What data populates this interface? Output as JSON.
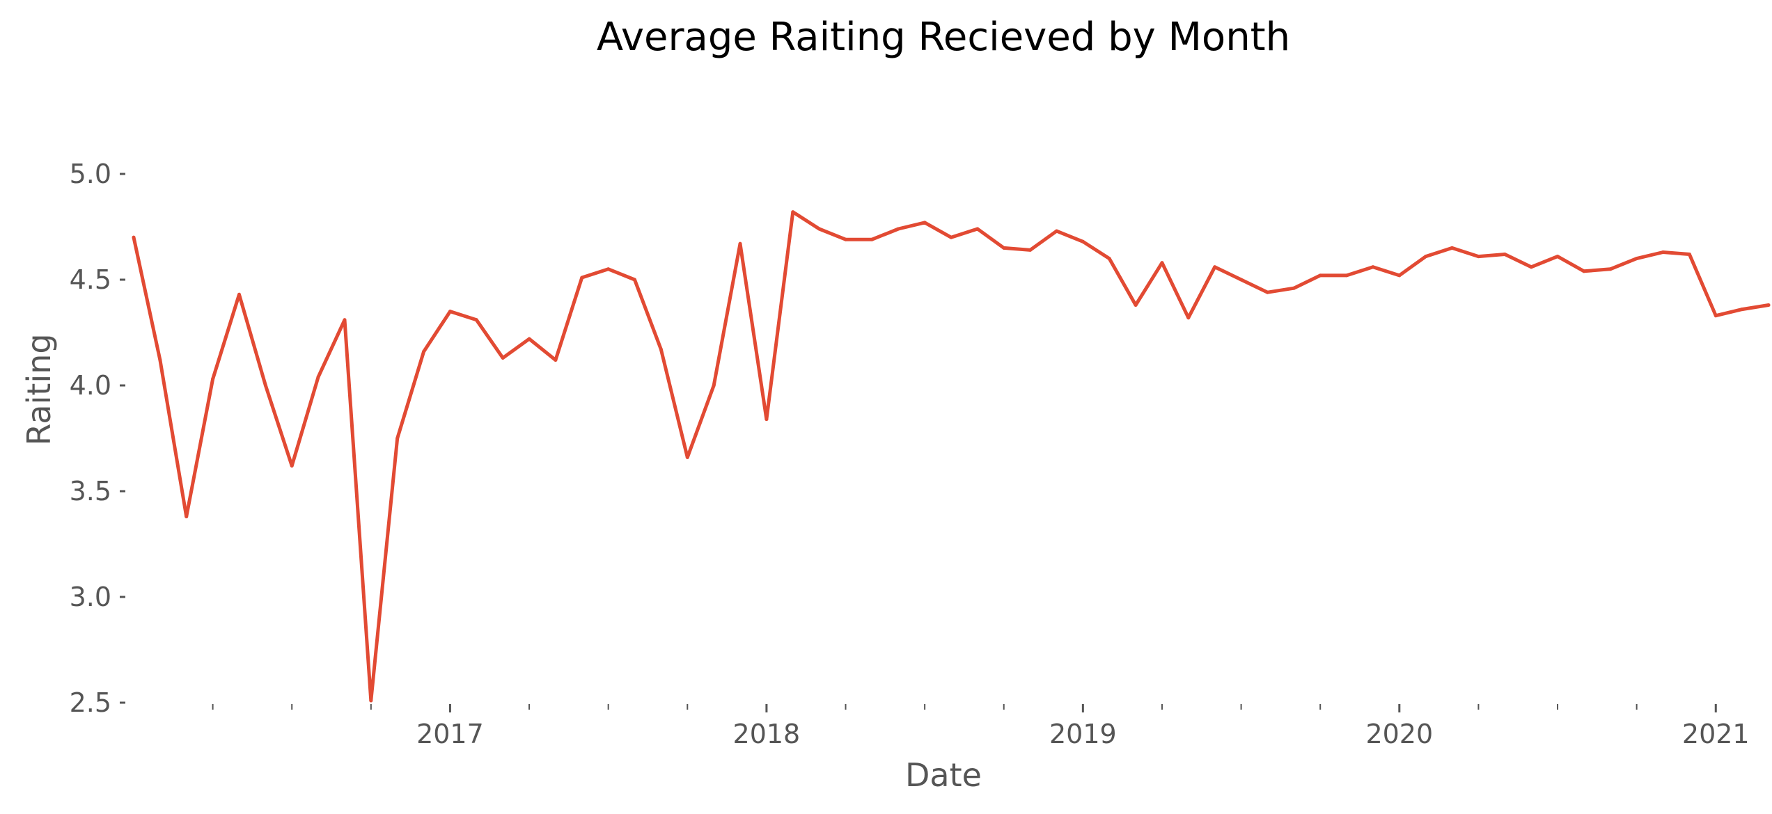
{
  "chart_data": {
    "type": "line",
    "title": "Average Raiting Recieved by Month",
    "xlabel": "Date",
    "ylabel": "Raiting",
    "ylim": [
      2.5,
      5.0
    ],
    "xlim": [
      "2016-01",
      "2021-03"
    ],
    "yticks": [
      "2.5",
      "3.0",
      "3.5",
      "4.0",
      "4.5",
      "5.0"
    ],
    "xticks": [
      "2017",
      "2018",
      "2019",
      "2020",
      "2021"
    ],
    "grid": false,
    "line_color": "#E24A33",
    "x": [
      "2016-01",
      "2016-02",
      "2016-03",
      "2016-04",
      "2016-05",
      "2016-06",
      "2016-07",
      "2016-08",
      "2016-09",
      "2016-10",
      "2016-11",
      "2016-12",
      "2017-01",
      "2017-02",
      "2017-03",
      "2017-04",
      "2017-05",
      "2017-06",
      "2017-07",
      "2017-08",
      "2017-09",
      "2017-10",
      "2017-11",
      "2017-12",
      "2018-01",
      "2018-02",
      "2018-03",
      "2018-04",
      "2018-05",
      "2018-06",
      "2018-07",
      "2018-08",
      "2018-09",
      "2018-10",
      "2018-11",
      "2018-12",
      "2019-01",
      "2019-02",
      "2019-03",
      "2019-04",
      "2019-05",
      "2019-06",
      "2019-07",
      "2019-08",
      "2019-09",
      "2019-10",
      "2019-11",
      "2019-12",
      "2020-01",
      "2020-02",
      "2020-03",
      "2020-04",
      "2020-05",
      "2020-06",
      "2020-07",
      "2020-08",
      "2020-09",
      "2020-10",
      "2020-11",
      "2020-12",
      "2021-01",
      "2021-02",
      "2021-03"
    ],
    "series": [
      {
        "values": [
          4.7,
          4.12,
          3.38,
          4.03,
          4.43,
          4.0,
          3.62,
          4.04,
          4.31,
          2.51,
          3.75,
          4.16,
          4.35,
          4.31,
          4.13,
          4.22,
          4.12,
          4.51,
          4.55,
          4.5,
          4.17,
          3.66,
          4.0,
          4.67,
          3.84,
          4.82,
          4.74,
          4.69,
          4.69,
          4.74,
          4.77,
          4.7,
          4.74,
          4.65,
          4.64,
          4.73,
          4.68,
          4.6,
          4.38,
          4.58,
          4.32,
          4.56,
          4.5,
          4.44,
          4.46,
          4.52,
          4.52,
          4.56,
          4.52,
          4.61,
          4.65,
          4.61,
          4.62,
          4.56,
          4.61,
          4.54,
          4.55,
          4.6,
          4.63,
          4.62,
          4.33,
          4.36,
          4.38
        ]
      }
    ]
  }
}
